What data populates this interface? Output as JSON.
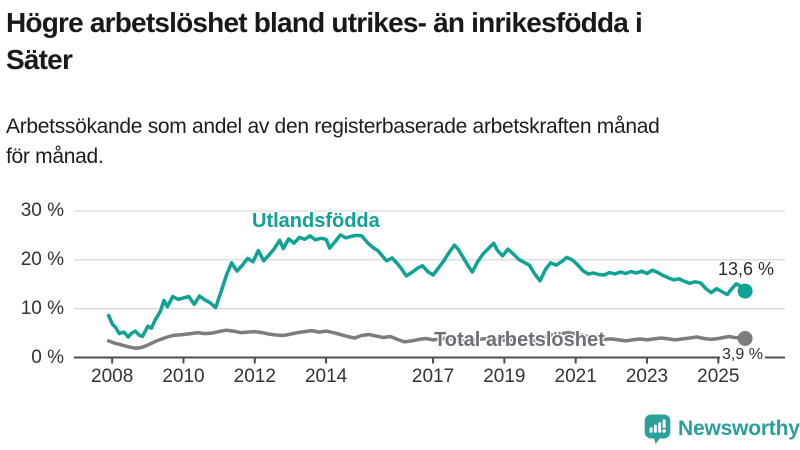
{
  "header": {
    "title_lines": [
      "Högre arbetslöshet bland utrikes- än inrikesfödda i",
      "Säter"
    ],
    "subtitle_lines": [
      "Arbetssökande som andel av den registerbaserade arbetskraften månad",
      "för månad."
    ]
  },
  "footer": {
    "brand": "Newsworthy"
  },
  "colors": {
    "accent_teal": "#10a294",
    "line_gray": "#7d7d7d",
    "label_gray": "#6e6e76",
    "grid": "#d9d9d9",
    "axis": "#4d4d4d",
    "tick_text": "#333333",
    "title_text": "#191919",
    "logo_teal": "#2b9f9c"
  },
  "chart_data": {
    "type": "line",
    "title": "Högre arbetslöshet bland utrikes- än inrikesfödda i Säter",
    "xlabel": "",
    "ylabel": "",
    "grid": "horizontal",
    "legend_position": "inline-labels",
    "xlim": [
      2006.93,
      2026.87
    ],
    "ylim": [
      0,
      30
    ],
    "x_ticks": [
      {
        "value": 2008,
        "label": "2008"
      },
      {
        "value": 2010,
        "label": "2010"
      },
      {
        "value": 2012,
        "label": "2012"
      },
      {
        "value": 2014,
        "label": "2014"
      },
      {
        "value": 2017,
        "label": "2017"
      },
      {
        "value": 2019,
        "label": "2019"
      },
      {
        "value": 2021,
        "label": "2021"
      },
      {
        "value": 2023,
        "label": "2023"
      },
      {
        "value": 2025,
        "label": "2025"
      }
    ],
    "y_ticks": [
      {
        "value": 0,
        "label": "0 %"
      },
      {
        "value": 10,
        "label": "10 %"
      },
      {
        "value": 20,
        "label": "20 %"
      },
      {
        "value": 30,
        "label": "30 %"
      }
    ],
    "series": [
      {
        "name": "Utlandsfödda",
        "color": "#10a294",
        "label_color": "#10a294",
        "end_dot": true,
        "end_label": "13,6 %",
        "end_value": 13.6,
        "points": [
          [
            2007.9,
            8.6
          ],
          [
            2008.0,
            6.9
          ],
          [
            2008.1,
            6.1
          ],
          [
            2008.2,
            4.9
          ],
          [
            2008.33,
            5.2
          ],
          [
            2008.45,
            4.2
          ],
          [
            2008.55,
            5.0
          ],
          [
            2008.65,
            5.4
          ],
          [
            2008.75,
            4.6
          ],
          [
            2008.85,
            4.3
          ],
          [
            2009.0,
            6.4
          ],
          [
            2009.1,
            6.0
          ],
          [
            2009.2,
            7.6
          ],
          [
            2009.35,
            9.4
          ],
          [
            2009.45,
            11.7
          ],
          [
            2009.55,
            10.4
          ],
          [
            2009.7,
            12.5
          ],
          [
            2009.85,
            11.9
          ],
          [
            2010.0,
            12.2
          ],
          [
            2010.15,
            12.5
          ],
          [
            2010.3,
            10.9
          ],
          [
            2010.45,
            12.6
          ],
          [
            2010.6,
            11.8
          ],
          [
            2010.75,
            11.2
          ],
          [
            2010.9,
            10.2
          ],
          [
            2011.05,
            13.4
          ],
          [
            2011.2,
            16.8
          ],
          [
            2011.35,
            19.4
          ],
          [
            2011.5,
            17.7
          ],
          [
            2011.65,
            18.9
          ],
          [
            2011.8,
            20.3
          ],
          [
            2011.95,
            19.6
          ],
          [
            2012.1,
            21.9
          ],
          [
            2012.25,
            19.8
          ],
          [
            2012.4,
            21.0
          ],
          [
            2012.55,
            22.3
          ],
          [
            2012.7,
            24.0
          ],
          [
            2012.8,
            22.3
          ],
          [
            2012.95,
            24.3
          ],
          [
            2013.1,
            23.4
          ],
          [
            2013.25,
            24.6
          ],
          [
            2013.4,
            24.2
          ],
          [
            2013.55,
            24.9
          ],
          [
            2013.7,
            24.1
          ],
          [
            2013.85,
            24.4
          ],
          [
            2014.0,
            24.2
          ],
          [
            2014.1,
            22.4
          ],
          [
            2014.25,
            23.7
          ],
          [
            2014.4,
            25.1
          ],
          [
            2014.55,
            24.5
          ],
          [
            2014.7,
            24.8
          ],
          [
            2014.85,
            25.0
          ],
          [
            2015.0,
            24.9
          ],
          [
            2015.15,
            23.6
          ],
          [
            2015.3,
            22.6
          ],
          [
            2015.45,
            21.9
          ],
          [
            2015.6,
            20.6
          ],
          [
            2015.7,
            19.8
          ],
          [
            2015.85,
            20.4
          ],
          [
            2016.0,
            19.2
          ],
          [
            2016.1,
            18.3
          ],
          [
            2016.25,
            16.7
          ],
          [
            2016.4,
            17.4
          ],
          [
            2016.55,
            18.2
          ],
          [
            2016.7,
            18.8
          ],
          [
            2016.85,
            17.6
          ],
          [
            2017.0,
            16.9
          ],
          [
            2017.15,
            18.3
          ],
          [
            2017.3,
            19.8
          ],
          [
            2017.45,
            21.5
          ],
          [
            2017.6,
            23.0
          ],
          [
            2017.7,
            22.2
          ],
          [
            2017.85,
            20.4
          ],
          [
            2018.0,
            18.6
          ],
          [
            2018.1,
            17.5
          ],
          [
            2018.25,
            19.6
          ],
          [
            2018.4,
            21.2
          ],
          [
            2018.55,
            22.3
          ],
          [
            2018.7,
            23.4
          ],
          [
            2018.8,
            22.0
          ],
          [
            2018.95,
            20.8
          ],
          [
            2019.1,
            22.2
          ],
          [
            2019.25,
            21.2
          ],
          [
            2019.4,
            20.1
          ],
          [
            2019.55,
            19.5
          ],
          [
            2019.7,
            18.9
          ],
          [
            2019.85,
            17.1
          ],
          [
            2020.0,
            15.7
          ],
          [
            2020.15,
            18.0
          ],
          [
            2020.3,
            19.4
          ],
          [
            2020.45,
            18.9
          ],
          [
            2020.6,
            19.6
          ],
          [
            2020.75,
            20.5
          ],
          [
            2020.9,
            20.0
          ],
          [
            2021.05,
            19.0
          ],
          [
            2021.2,
            17.8
          ],
          [
            2021.35,
            17.1
          ],
          [
            2021.5,
            17.3
          ],
          [
            2021.65,
            17.0
          ],
          [
            2021.8,
            16.9
          ],
          [
            2021.95,
            17.4
          ],
          [
            2022.1,
            17.1
          ],
          [
            2022.25,
            17.5
          ],
          [
            2022.4,
            17.2
          ],
          [
            2022.55,
            17.6
          ],
          [
            2022.7,
            17.3
          ],
          [
            2022.85,
            17.7
          ],
          [
            2023.0,
            17.2
          ],
          [
            2023.15,
            17.9
          ],
          [
            2023.3,
            17.4
          ],
          [
            2023.45,
            16.8
          ],
          [
            2023.6,
            16.3
          ],
          [
            2023.75,
            15.9
          ],
          [
            2023.9,
            16.1
          ],
          [
            2024.05,
            15.6
          ],
          [
            2024.2,
            15.2
          ],
          [
            2024.35,
            15.5
          ],
          [
            2024.5,
            15.3
          ],
          [
            2024.65,
            14.1
          ],
          [
            2024.8,
            13.3
          ],
          [
            2024.95,
            14.1
          ],
          [
            2025.1,
            13.5
          ],
          [
            2025.25,
            12.9
          ],
          [
            2025.4,
            14.3
          ],
          [
            2025.5,
            15.1
          ],
          [
            2025.6,
            14.7
          ],
          [
            2025.75,
            13.6
          ]
        ]
      },
      {
        "name": "Total arbetslöshet",
        "color": "#7d7d7d",
        "label_color": "#6e6e76",
        "end_dot": true,
        "end_label": "3,9 %",
        "end_value": 3.9,
        "points": [
          [
            2007.9,
            3.4
          ],
          [
            2008.05,
            3.0
          ],
          [
            2008.2,
            2.7
          ],
          [
            2008.35,
            2.4
          ],
          [
            2008.5,
            2.1
          ],
          [
            2008.65,
            1.9
          ],
          [
            2008.8,
            2.0
          ],
          [
            2008.95,
            2.4
          ],
          [
            2009.1,
            2.9
          ],
          [
            2009.25,
            3.4
          ],
          [
            2009.4,
            3.8
          ],
          [
            2009.55,
            4.2
          ],
          [
            2009.7,
            4.5
          ],
          [
            2009.85,
            4.6
          ],
          [
            2010.0,
            4.7
          ],
          [
            2010.2,
            4.9
          ],
          [
            2010.4,
            5.1
          ],
          [
            2010.6,
            4.9
          ],
          [
            2010.8,
            5.0
          ],
          [
            2011.0,
            5.3
          ],
          [
            2011.2,
            5.6
          ],
          [
            2011.4,
            5.4
          ],
          [
            2011.6,
            5.1
          ],
          [
            2011.8,
            5.2
          ],
          [
            2012.0,
            5.3
          ],
          [
            2012.2,
            5.1
          ],
          [
            2012.4,
            4.8
          ],
          [
            2012.6,
            4.6
          ],
          [
            2012.8,
            4.5
          ],
          [
            2013.0,
            4.8
          ],
          [
            2013.2,
            5.1
          ],
          [
            2013.4,
            5.3
          ],
          [
            2013.6,
            5.5
          ],
          [
            2013.8,
            5.2
          ],
          [
            2014.0,
            5.4
          ],
          [
            2014.2,
            5.1
          ],
          [
            2014.4,
            4.7
          ],
          [
            2014.6,
            4.3
          ],
          [
            2014.8,
            4.0
          ],
          [
            2015.0,
            4.5
          ],
          [
            2015.2,
            4.7
          ],
          [
            2015.4,
            4.4
          ],
          [
            2015.6,
            4.1
          ],
          [
            2015.8,
            4.3
          ],
          [
            2016.0,
            3.7
          ],
          [
            2016.2,
            3.2
          ],
          [
            2016.4,
            3.4
          ],
          [
            2016.6,
            3.7
          ],
          [
            2016.8,
            3.9
          ],
          [
            2017.0,
            3.6
          ],
          [
            2017.2,
            3.8
          ],
          [
            2017.4,
            4.0
          ],
          [
            2017.6,
            3.7
          ],
          [
            2017.8,
            3.5
          ],
          [
            2018.0,
            3.3
          ],
          [
            2018.2,
            3.6
          ],
          [
            2018.4,
            3.8
          ],
          [
            2018.6,
            4.0
          ],
          [
            2018.8,
            3.7
          ],
          [
            2019.0,
            3.5
          ],
          [
            2019.2,
            3.7
          ],
          [
            2019.4,
            3.9
          ],
          [
            2019.6,
            3.6
          ],
          [
            2019.8,
            3.4
          ],
          [
            2020.0,
            3.6
          ],
          [
            2020.2,
            4.4
          ],
          [
            2020.4,
            4.7
          ],
          [
            2020.6,
            4.9
          ],
          [
            2020.8,
            5.1
          ],
          [
            2021.0,
            4.8
          ],
          [
            2021.2,
            4.5
          ],
          [
            2021.4,
            4.2
          ],
          [
            2021.6,
            3.9
          ],
          [
            2021.8,
            3.7
          ],
          [
            2022.0,
            3.8
          ],
          [
            2022.2,
            3.6
          ],
          [
            2022.4,
            3.4
          ],
          [
            2022.6,
            3.6
          ],
          [
            2022.8,
            3.8
          ],
          [
            2023.0,
            3.6
          ],
          [
            2023.2,
            3.8
          ],
          [
            2023.4,
            4.0
          ],
          [
            2023.6,
            3.8
          ],
          [
            2023.8,
            3.6
          ],
          [
            2024.0,
            3.8
          ],
          [
            2024.2,
            4.0
          ],
          [
            2024.4,
            4.2
          ],
          [
            2024.6,
            3.9
          ],
          [
            2024.8,
            3.7
          ],
          [
            2025.0,
            3.9
          ],
          [
            2025.15,
            4.1
          ],
          [
            2025.3,
            4.3
          ],
          [
            2025.45,
            4.1
          ],
          [
            2025.6,
            4.0
          ],
          [
            2025.75,
            3.9
          ]
        ]
      }
    ]
  }
}
